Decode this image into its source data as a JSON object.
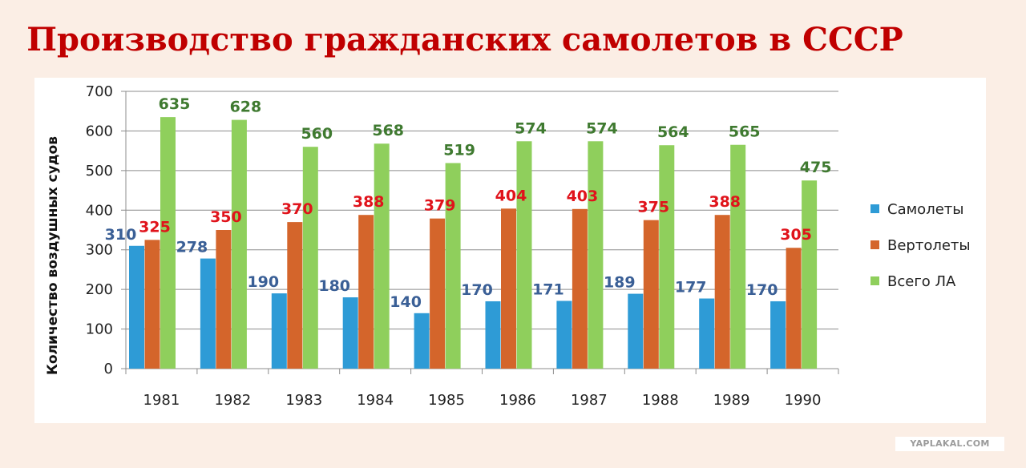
{
  "page": {
    "watermark": "YAPLAKAL.COM"
  },
  "chart_data": {
    "type": "bar",
    "title": "Производство гражданских самолетов в СССР",
    "xlabel": "",
    "ylabel": "Количество воздушных судов",
    "ylim": [
      0,
      700
    ],
    "yticks": [
      0,
      100,
      200,
      300,
      400,
      500,
      600,
      700
    ],
    "grid": true,
    "legend_position": "right",
    "categories": [
      "1981",
      "1982",
      "1983",
      "1984",
      "1985",
      "1986",
      "1987",
      "1988",
      "1989",
      "1990"
    ],
    "series": [
      {
        "name": "Самолеты",
        "color": "#2e9bd6",
        "label_color": "#3a5f96",
        "values": [
          310,
          278,
          190,
          180,
          140,
          170,
          171,
          189,
          177,
          170
        ]
      },
      {
        "name": "Вертолеты",
        "color": "#d4652b",
        "label_color": "#e0131b",
        "values": [
          325,
          350,
          370,
          388,
          379,
          404,
          403,
          375,
          388,
          305
        ]
      },
      {
        "name": "Всего ЛА",
        "color": "#8fcf5c",
        "label_color": "#3f7a30",
        "values": [
          635,
          628,
          560,
          568,
          519,
          574,
          574,
          564,
          565,
          475
        ]
      }
    ]
  }
}
